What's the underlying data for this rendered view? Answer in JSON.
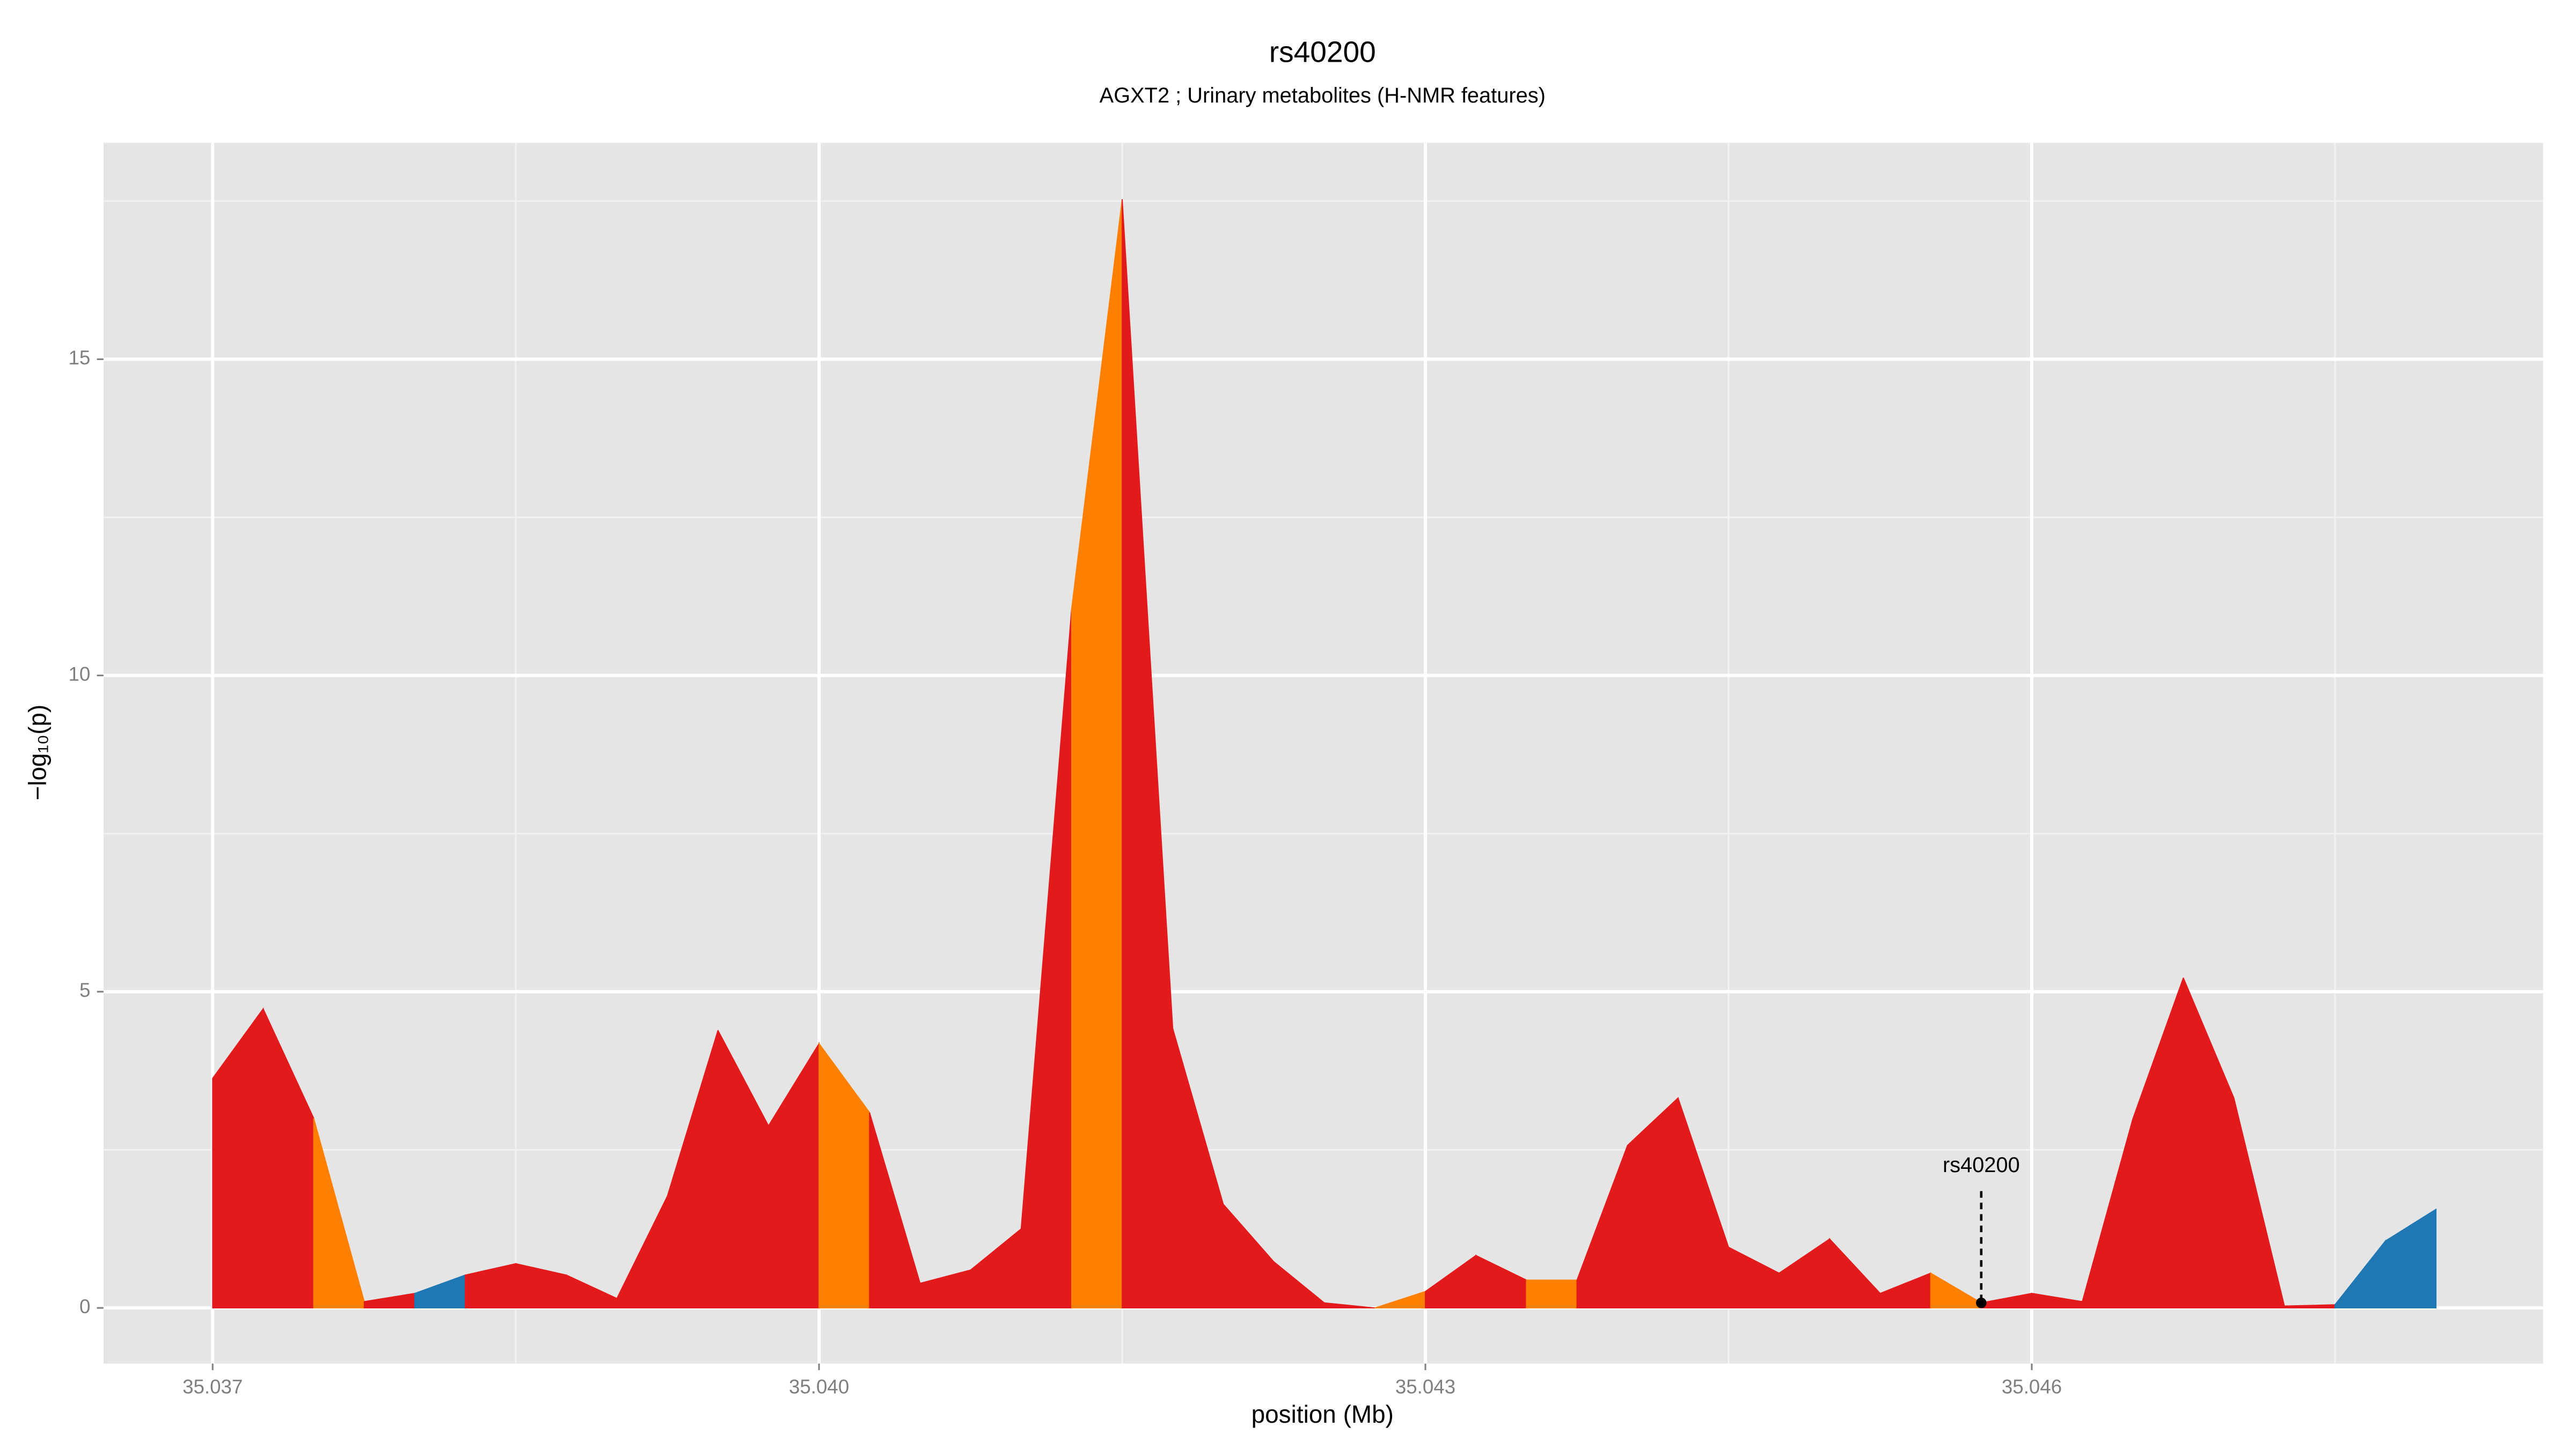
{
  "chart_data": {
    "type": "area",
    "title": "rs40200",
    "subtitle": "AGXT2 ; Urinary metabolites (H-NMR features)",
    "x_label": "position (Mb)",
    "y_label": "−log₁₀(p)",
    "x": [
      35.037,
      35.03725,
      35.0375,
      35.03775,
      35.038,
      35.03825,
      35.0385,
      35.03875,
      35.039,
      35.03925,
      35.0395,
      35.03975,
      35.04,
      35.04025,
      35.0405,
      35.04075,
      35.041,
      35.04125,
      35.0415,
      35.04175,
      35.042,
      35.04225,
      35.0425,
      35.04275,
      35.043,
      35.04325,
      35.0435,
      35.04375,
      35.044,
      35.04425,
      35.0445,
      35.04475,
      35.045,
      35.04525,
      35.0455,
      35.04575,
      35.046,
      35.04625,
      35.0465,
      35.04675,
      35.047,
      35.04725,
      35.0475,
      35.04775,
      35.048
    ],
    "values": [
      3.63,
      4.73,
      3.0,
      0.1,
      0.23,
      0.52,
      0.7,
      0.52,
      0.15,
      1.77,
      4.39,
      2.88,
      4.18,
      3.09,
      0.39,
      0.6,
      1.25,
      11.06,
      17.53,
      4.42,
      1.64,
      0.73,
      0.08,
      0.0,
      0.26,
      0.83,
      0.44,
      0.44,
      2.57,
      3.32,
      0.96,
      0.55,
      1.09,
      0.23,
      0.55,
      0.08,
      0.23,
      0.1,
      2.99,
      5.22,
      3.32,
      0.03,
      0.05,
      1.06,
      1.56
    ],
    "fill_colors": [
      "#e31a1c",
      "#e31a1c",
      "#ff7f00",
      "#e31a1c",
      "#1f78b4",
      "#e31a1c",
      "#e31a1c",
      "#e31a1c",
      "#e31a1c",
      "#e31a1c",
      "#e31a1c",
      "#e31a1c",
      "#ff7f00",
      "#e31a1c",
      "#e31a1c",
      "#e31a1c",
      "#e31a1c",
      "#ff7f00",
      "#e31a1c",
      "#e31a1c",
      "#e31a1c",
      "#e31a1c",
      "#e31a1c",
      "#ff7f00",
      "#e31a1c",
      "#e31a1c",
      "#ff7f00",
      "#e31a1c",
      "#e31a1c",
      "#e31a1c",
      "#e31a1c",
      "#e31a1c",
      "#e31a1c",
      "#e31a1c",
      "#ff7f00",
      "#e31a1c",
      "#e31a1c",
      "#e31a1c",
      "#e31a1c",
      "#e31a1c",
      "#e31a1c",
      "#e31a1c",
      "#1f78b4",
      "#1f78b4"
    ],
    "annotation": {
      "text": "rs40200",
      "x": 35.04575,
      "y": 0.08
    },
    "xlim": [
      35.03646,
      35.04853
    ],
    "ylim": [
      -0.88,
      18.42
    ],
    "xticks": [
      35.037,
      {
        "value": 35.04,
        "label": "35.040"
      },
      35.043,
      35.046
    ],
    "minor_xticks": [
      35.0385,
      35.0415,
      35.0445,
      35.0475
    ],
    "yticks": [
      0,
      5,
      10,
      15
    ],
    "minor_yticks": [
      2.5,
      7.5,
      12.5,
      17.5
    ],
    "grid": true
  }
}
